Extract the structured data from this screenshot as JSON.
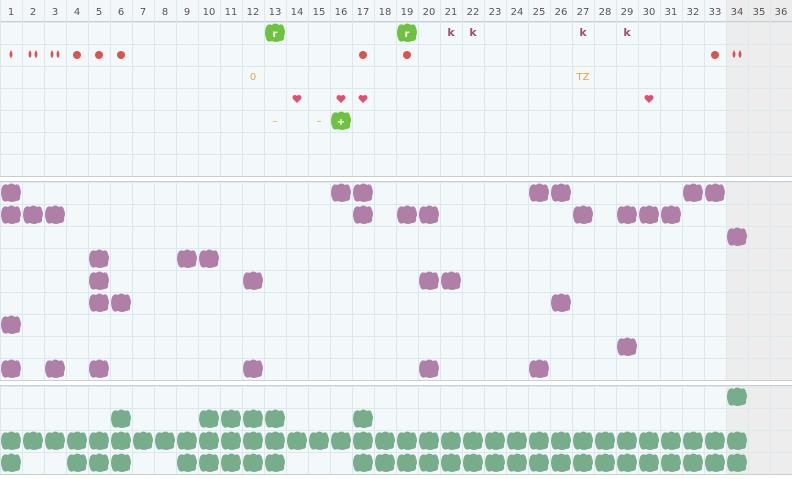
{
  "columns": [
    1,
    2,
    3,
    4,
    5,
    6,
    7,
    8,
    9,
    10,
    11,
    12,
    13,
    14,
    15,
    16,
    17,
    18,
    19,
    20,
    21,
    22,
    23,
    24,
    25,
    26,
    27,
    28,
    29,
    30,
    31,
    32,
    33,
    34,
    35,
    36
  ],
  "top": {
    "rows": [
      [
        {
          "col": 13,
          "kind": "tile",
          "text": "r"
        },
        {
          "col": 19,
          "kind": "tile",
          "text": "r"
        },
        {
          "col": 21,
          "kind": "text",
          "text": "k"
        },
        {
          "col": 22,
          "kind": "text",
          "text": "k"
        },
        {
          "col": 27,
          "kind": "text",
          "text": "k"
        },
        {
          "col": 29,
          "kind": "text",
          "text": "k"
        }
      ],
      [
        {
          "col": 1,
          "kind": "drop"
        },
        {
          "col": 2,
          "kind": "drops"
        },
        {
          "col": 3,
          "kind": "drops"
        },
        {
          "col": 4,
          "kind": "dot"
        },
        {
          "col": 5,
          "kind": "dot"
        },
        {
          "col": 6,
          "kind": "dot"
        },
        {
          "col": 17,
          "kind": "dot"
        },
        {
          "col": 19,
          "kind": "dot"
        },
        {
          "col": 33,
          "kind": "dot"
        },
        {
          "col": 34,
          "kind": "drops"
        }
      ],
      [
        {
          "col": 12,
          "kind": "label",
          "text": "0"
        },
        {
          "col": 27,
          "kind": "label",
          "text": "TZ"
        }
      ],
      [
        {
          "col": 14,
          "kind": "heart"
        },
        {
          "col": 16,
          "kind": "heart"
        },
        {
          "col": 17,
          "kind": "heart"
        },
        {
          "col": 30,
          "kind": "heart"
        }
      ],
      [
        {
          "col": 13,
          "kind": "label",
          "text": "–"
        },
        {
          "col": 15,
          "kind": "label",
          "text": "–"
        },
        {
          "col": 16,
          "kind": "tile",
          "text": "+"
        }
      ],
      [],
      []
    ]
  },
  "middle": {
    "rows": [
      [
        1,
        16,
        17,
        25,
        26,
        32,
        33
      ],
      [
        1,
        2,
        3,
        17,
        19,
        20,
        27,
        29,
        30,
        31
      ],
      [
        34
      ],
      [
        5,
        9,
        10
      ],
      [
        5,
        12,
        20,
        21
      ],
      [
        5,
        6,
        26
      ],
      [
        1
      ],
      [
        29
      ],
      [
        1,
        3,
        5,
        12,
        20,
        25
      ]
    ]
  },
  "bottom": {
    "rows": [
      [
        34
      ],
      [
        6,
        10,
        11,
        12,
        13,
        17
      ],
      [
        1,
        2,
        3,
        4,
        5,
        6,
        7,
        8,
        9,
        10,
        11,
        12,
        13,
        14,
        15,
        16,
        17,
        18,
        19,
        20,
        21,
        22,
        23,
        24,
        25,
        26,
        27,
        28,
        29,
        30,
        31,
        32,
        33,
        34
      ],
      [
        1,
        4,
        5,
        6,
        9,
        10,
        11,
        12,
        13,
        17,
        18,
        19,
        20,
        21,
        22,
        23,
        24,
        25,
        26,
        27,
        28,
        29,
        30,
        31,
        32,
        33,
        34
      ]
    ]
  }
}
